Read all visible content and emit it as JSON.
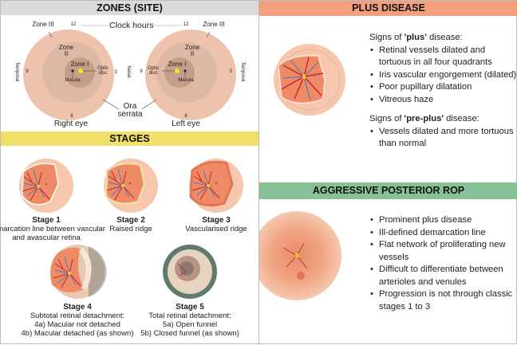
{
  "zones": {
    "title": "ZONES (SITE)",
    "header_color": "#dcdbd9",
    "clock_hours": "Clock hours",
    "h12": "12",
    "h9": "9",
    "h3": "3",
    "h6": "6",
    "temporal": "Temporal",
    "nasal": "Nasal",
    "zone1": "Zone I",
    "zone2": "Zone II",
    "zone3": "Zone III",
    "optic_disc": "Optic disc",
    "macula": "Macula",
    "ora_serrata": "Ora serrata",
    "right_eye": "Right eye",
    "left_eye": "Left eye"
  },
  "stages": {
    "title": "STAGES",
    "header_color": "#f1df6b",
    "items": [
      {
        "name": "Stage 1",
        "desc": "Demarcation line between vascular and avascular retina"
      },
      {
        "name": "Stage 2",
        "desc": "Raised ridge"
      },
      {
        "name": "Stage 3",
        "desc": "Vascularised ridge"
      },
      {
        "name": "Stage 4",
        "desc": "Subtotal retinal detachment:",
        "lines": [
          "4a) Macular not detached",
          "4b) Macular detached (as shown)"
        ]
      },
      {
        "name": "Stage 5",
        "desc": "Total retinal detachment:",
        "lines": [
          "5a) Open funnel",
          "5b) Closed funnel (as shown)"
        ]
      }
    ]
  },
  "plus": {
    "title": "PLUS DISEASE",
    "header_color": "#f4a07e",
    "signs_pre": "Signs of ",
    "signs_bold": "'plus'",
    "signs_post": " disease:",
    "items": [
      "Retinal vessels dilated and tortuous in all four quadrants",
      "Iris vascular engorgement (dilated)",
      "Poor pupillary dilatation",
      "Vitreous haze"
    ],
    "pre_pre": "Signs of ",
    "pre_bold": "'pre-plus'",
    "pre_post": " disease:",
    "pre_items": [
      "Vessels dilated and more tortuous than normal"
    ]
  },
  "aprop": {
    "title": "AGGRESSIVE POSTERIOR ROP",
    "header_color": "#86c295",
    "items": [
      "Prominent plus disease",
      "Ill-defined demarcation line",
      "Flat network of proliferating new vessels",
      "Difficult to differentiate between arterioles and venules",
      "Progression is not through classic stages 1 to 3"
    ]
  }
}
